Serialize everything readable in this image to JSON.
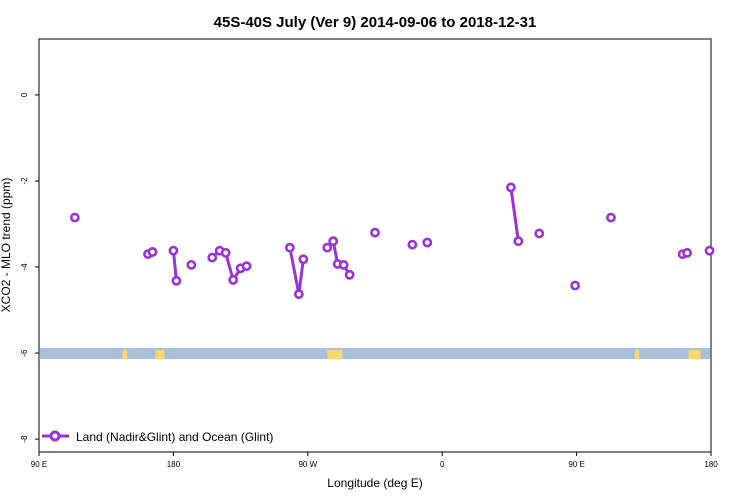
{
  "chart_data": {
    "type": "line",
    "title": "45S-40S July (Ver 9)   2014-09-06 to 2018-12-31",
    "xlabel": "Longitude (deg E)",
    "ylabel": "XCO2 - MLO trend (ppm)",
    "xlim": [
      90,
      540
    ],
    "ylim": [
      -8.3,
      1.3
    ],
    "x_ticks": [
      {
        "value": 90,
        "label": "90 E"
      },
      {
        "value": 180,
        "label": "180"
      },
      {
        "value": 270,
        "label": "90 W"
      },
      {
        "value": 360,
        "label": "0"
      },
      {
        "value": 450,
        "label": "90 E"
      },
      {
        "value": 540,
        "label": "180"
      }
    ],
    "y_ticks": [
      {
        "value": 0,
        "label": "0"
      },
      {
        "value": -2,
        "label": "-2"
      },
      {
        "value": -4,
        "label": "-4"
      },
      {
        "value": -6,
        "label": "-6"
      },
      {
        "value": -8,
        "label": "-8"
      }
    ],
    "grid": false,
    "legend_position": "bottom-left",
    "colors": {
      "series": "#9b30e0",
      "ocean_band": "#a9bfdc",
      "land_band": "#fbd86b"
    },
    "series": [
      {
        "name": "Land (Nadir&Glint) and Ocean (Glint)",
        "segments": [
          [
            [
              114,
              -2.85
            ]
          ],
          [
            [
              163,
              -3.7
            ],
            [
              166,
              -3.65
            ]
          ],
          [
            [
              180,
              -3.62
            ],
            [
              182,
              -4.32
            ]
          ],
          [
            [
              192,
              -3.95
            ]
          ],
          [
            [
              206,
              -3.78
            ],
            [
              211,
              -3.62
            ],
            [
              215,
              -3.67
            ],
            [
              220,
              -4.3
            ],
            [
              225,
              -4.03
            ],
            [
              229,
              -3.98
            ]
          ],
          [
            [
              258,
              -3.55
            ],
            [
              264,
              -4.63
            ],
            [
              267,
              -3.82
            ]
          ],
          [
            [
              283,
              -3.55
            ],
            [
              287,
              -3.4
            ],
            [
              290,
              -3.93
            ],
            [
              294,
              -3.95
            ],
            [
              298,
              -4.18
            ]
          ],
          [
            [
              315,
              -3.2
            ]
          ],
          [
            [
              340,
              -3.48
            ]
          ],
          [
            [
              350,
              -3.43
            ]
          ],
          [
            [
              406,
              -2.15
            ],
            [
              411,
              -3.4
            ]
          ],
          [
            [
              425,
              -3.22
            ]
          ],
          [
            [
              449,
              -4.43
            ]
          ],
          [
            [
              473,
              -2.85
            ]
          ],
          [
            [
              521,
              -3.7
            ],
            [
              524,
              -3.67
            ]
          ],
          [
            [
              539,
              -3.62
            ]
          ]
        ]
      }
    ],
    "surface_band": {
      "y": -6,
      "land_spans": [
        [
          146,
          149
        ],
        [
          168,
          174
        ],
        [
          283,
          293
        ],
        [
          489,
          492
        ],
        [
          525,
          533
        ]
      ]
    }
  }
}
